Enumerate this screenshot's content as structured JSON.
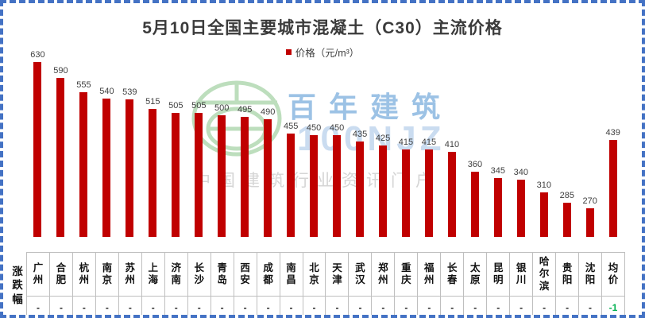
{
  "title": "5月10日全国主要城市混凝土（C30）主流价格",
  "legend": {
    "label": "价格（元/m³）"
  },
  "watermark": {
    "brand": "百年建筑",
    "brand_sub": "100NJZ",
    "tagline": "中国建筑行业资讯门户"
  },
  "table": {
    "row_header": "涨跌幅"
  },
  "colors": {
    "bar": "#C00000",
    "frame_border": "#4472C4",
    "table_border": "#BFBFBF",
    "negative_change": "#00B050",
    "watermark_green": "#A8D3A8",
    "watermark_blue": "#9CC2E5"
  },
  "chart_data": {
    "type": "bar",
    "title": "5月10日全国主要城市混凝土（C30）主流价格",
    "legend_entries": [
      "价格（元/m³）"
    ],
    "legend_position": "top",
    "bar_color": "#C00000",
    "grid": false,
    "data_labels": true,
    "ylim": [
      200,
      650
    ],
    "axis_min": 200,
    "categories": [
      "广州",
      "合肥",
      "杭州",
      "南京",
      "苏州",
      "上海",
      "济南",
      "长沙",
      "青岛",
      "西安",
      "成都",
      "南昌",
      "北京",
      "天津",
      "武汉",
      "郑州",
      "重庆",
      "福州",
      "长春",
      "太原",
      "昆明",
      "银川",
      "哈尔滨",
      "贵阳",
      "沈阳",
      "均价"
    ],
    "values": [
      630,
      590,
      555,
      540,
      539,
      515,
      505,
      505,
      500,
      495,
      490,
      455,
      450,
      450,
      435,
      425,
      415,
      415,
      410,
      360,
      345,
      340,
      310,
      285,
      270,
      439
    ],
    "changes": [
      "-",
      "-",
      "-",
      "-",
      "-",
      "-",
      "-",
      "-",
      "-",
      "-",
      "-",
      "-",
      "-",
      "-",
      "-",
      "-",
      "-",
      "-",
      "-",
      "-",
      "-",
      "-",
      "-",
      "-",
      "-",
      "-1"
    ]
  }
}
